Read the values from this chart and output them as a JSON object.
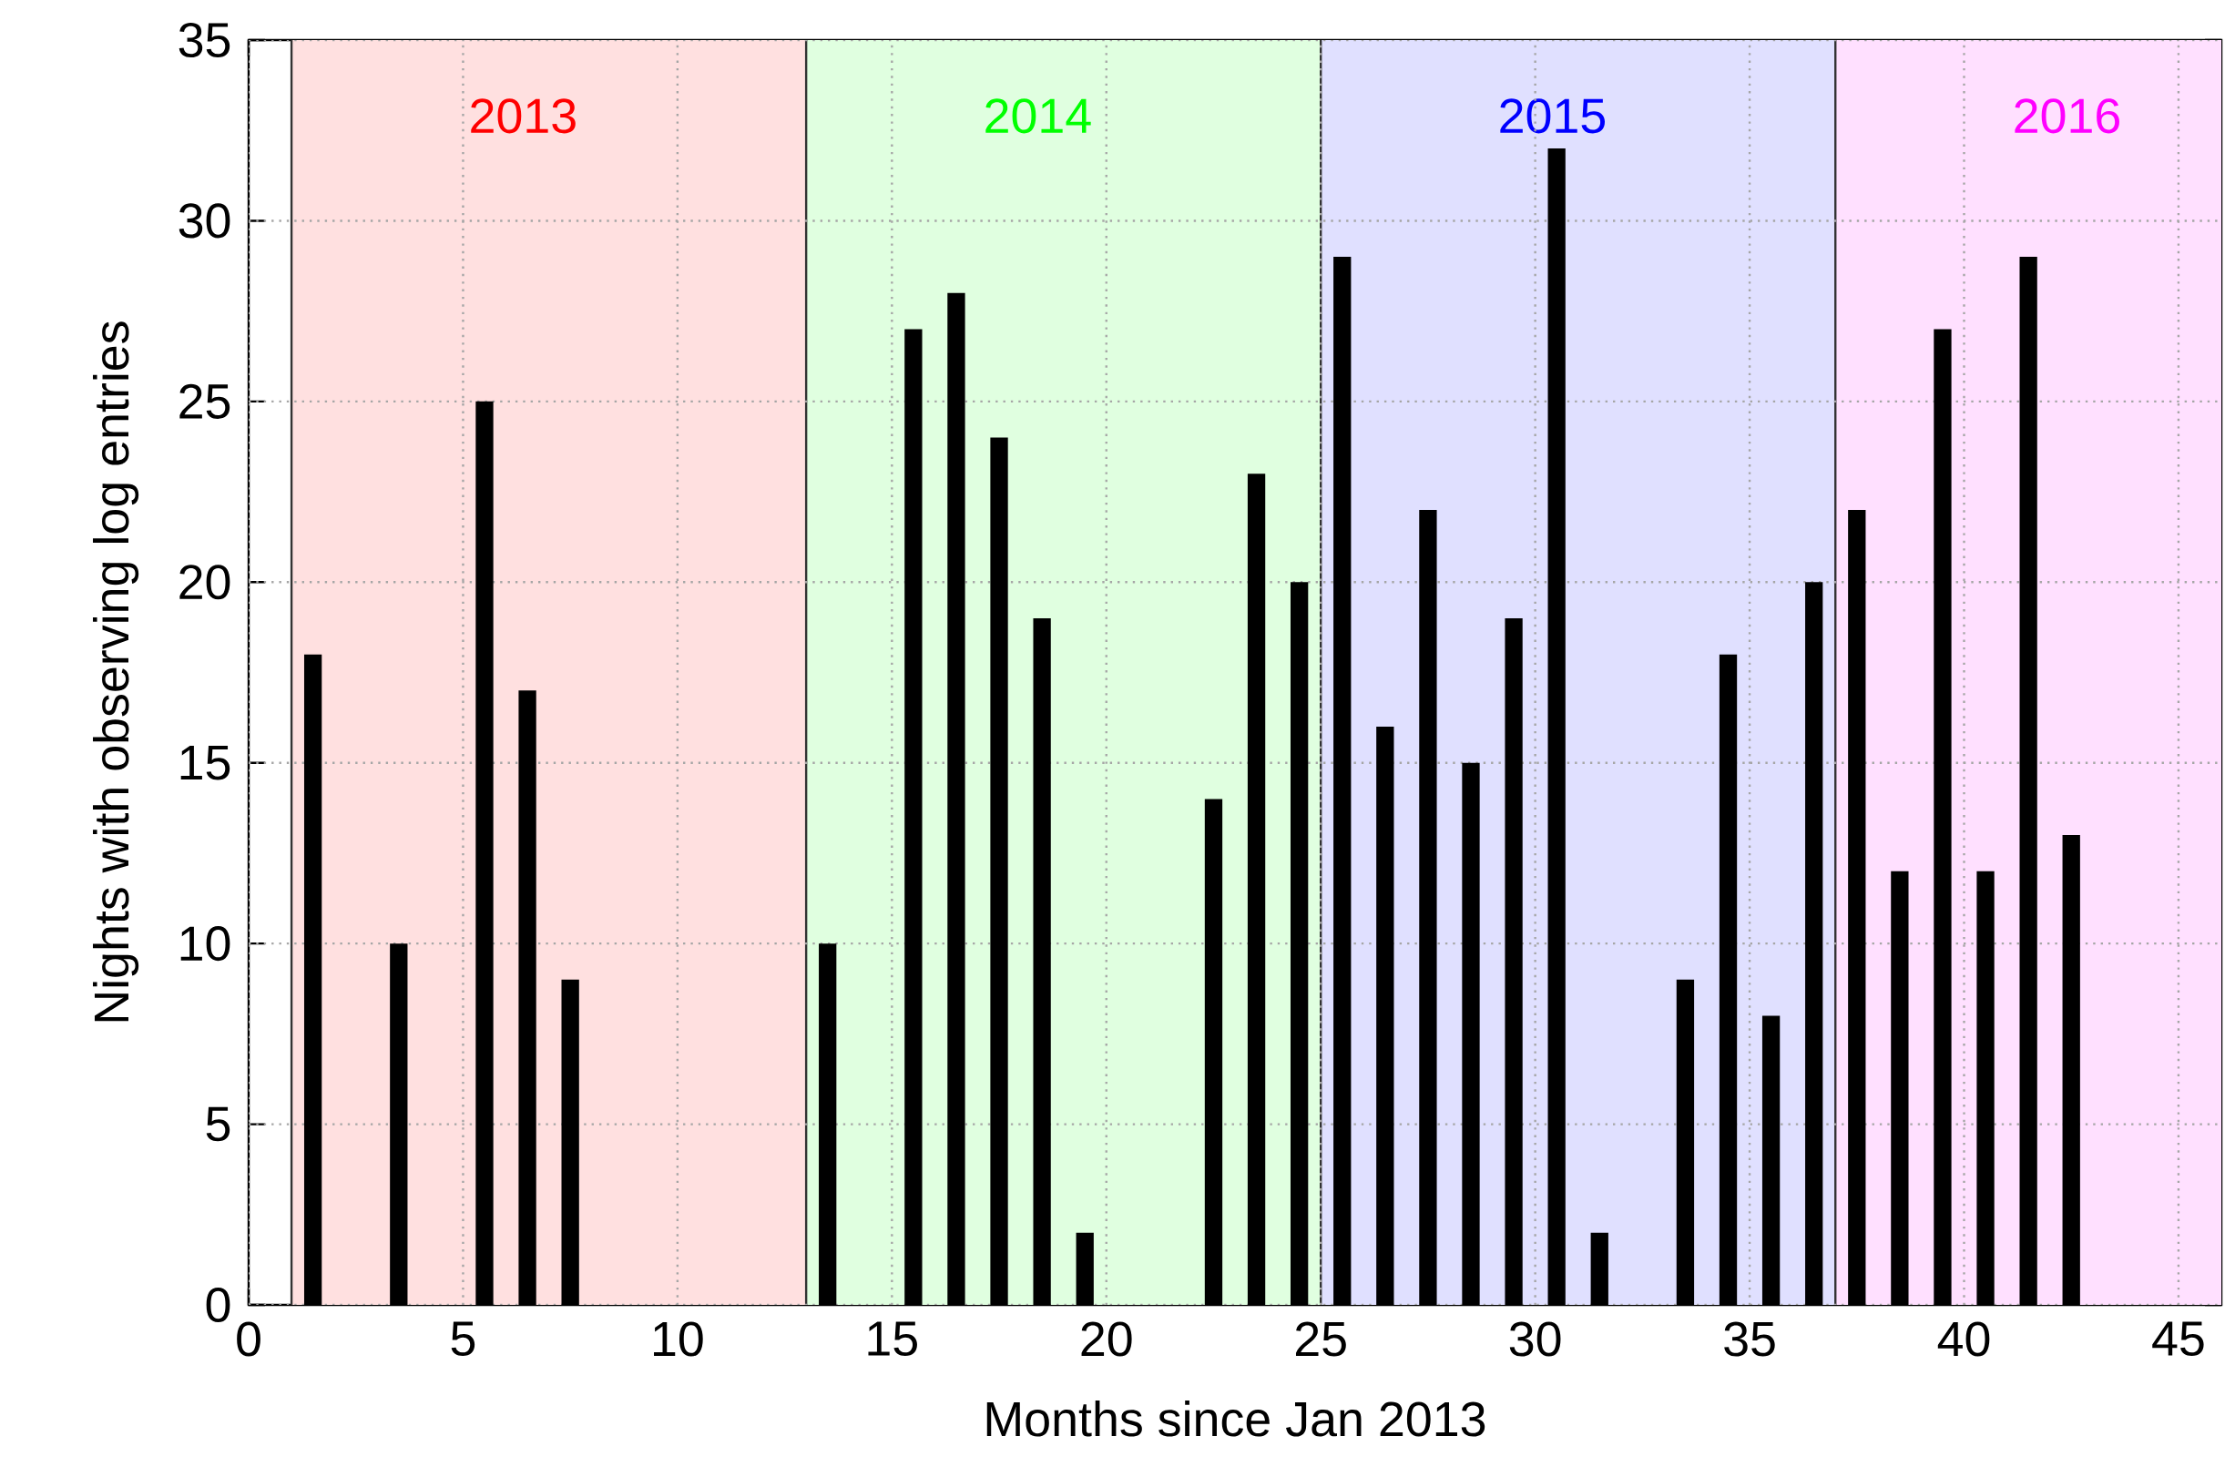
{
  "chart_data": {
    "type": "bar",
    "xlabel": "Months since Jan 2013",
    "ylabel": "Nights with observing log entries",
    "x": [
      1.5,
      3.5,
      5.5,
      6.5,
      7.5,
      13.5,
      15.5,
      16.5,
      17.5,
      18.5,
      19.5,
      22.5,
      23.5,
      24.5,
      25.5,
      26.5,
      27.5,
      28.5,
      29.5,
      30.5,
      31.5,
      33.5,
      34.5,
      35.5,
      36.5,
      37.5,
      38.5,
      39.5,
      40.5,
      41.5,
      42.5
    ],
    "values": [
      18,
      10,
      25,
      17,
      9,
      10,
      27,
      28,
      24,
      19,
      2,
      14,
      23,
      20,
      29,
      16,
      22,
      15,
      19,
      32,
      2,
      9,
      18,
      8,
      20,
      22,
      12,
      27,
      12,
      29,
      13
    ],
    "color": "#000000",
    "xlim": [
      0,
      46
    ],
    "ylim": [
      0,
      35
    ],
    "xticks": [
      0,
      5,
      10,
      15,
      20,
      25,
      30,
      35,
      40,
      45
    ],
    "yticks": [
      0,
      5,
      10,
      15,
      20,
      25,
      30,
      35
    ],
    "grid": true,
    "bands": [
      {
        "axis": "x",
        "from": 1,
        "to": 13,
        "label": "2013",
        "color": "#ffe0e0"
      },
      {
        "axis": "x",
        "from": 13,
        "to": 25,
        "label": "2014",
        "color": "#e0ffe0"
      },
      {
        "axis": "x",
        "from": 25,
        "to": 37,
        "label": "2015",
        "color": "#e0e0ff"
      },
      {
        "axis": "x",
        "from": 37,
        "to": 46,
        "label": "2016",
        "color": "#ffe0ff"
      }
    ]
  }
}
